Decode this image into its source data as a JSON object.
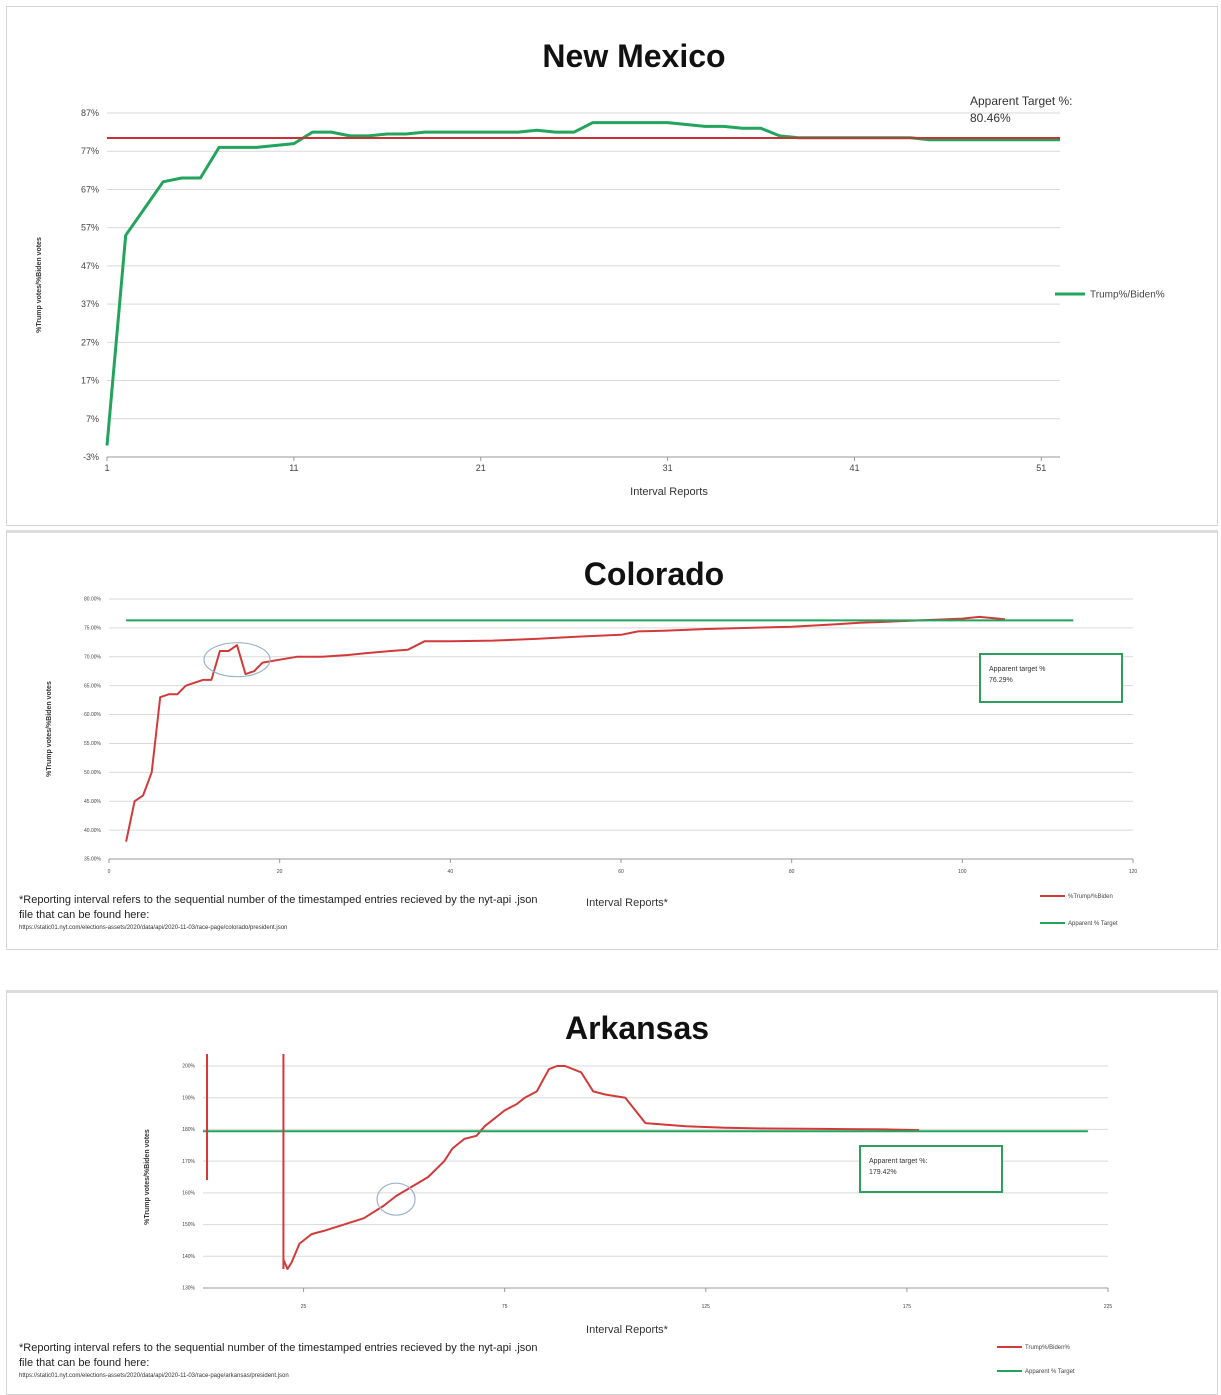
{
  "charts": [
    {
      "title": "New Mexico",
      "xlabel": "Interval Reports",
      "ylabel": "%Trump votes/%Biden votes",
      "target_label": "Apparent Target %:",
      "target_value": "80.46%",
      "legend": [
        "Trump%/Biden%"
      ]
    },
    {
      "title": "Colorado",
      "xlabel": "Interval Reports*",
      "ylabel": "%Trump votes/%Biden votes",
      "target_label": "Apparent target %",
      "target_value": "76.29%",
      "legend": [
        "%Trump/%Biden",
        "Apparent % Target"
      ],
      "note": "*Reporting interval refers to the sequential number of the timestamped entries recieved by the nyt-api .json file that can be found here:",
      "url": "https://static01.nyt.com/elections-assets/2020/data/api/2020-11-03/race-page/colorado/president.json"
    },
    {
      "title": "Arkansas",
      "xlabel": "Interval Reports*",
      "ylabel": "%Trump votes/%Biden votes",
      "target_label": "Apparent target %:",
      "target_value": "179.42%",
      "legend": [
        "Trump%/Biden%",
        "Apparent % Target"
      ],
      "note": "*Reporting interval refers to the sequential number of the timestamped entries recieved by the nyt-api .json file that can be found here:",
      "url": "https://static01.nyt.com/elections-assets/2020/data/api/2020-11-03/race-page/arkansas/president.json"
    }
  ],
  "chart_data": [
    {
      "type": "line",
      "title": "New Mexico",
      "xlabel": "Interval Reports",
      "ylabel": "%Trump votes/%Biden votes",
      "ylim": [
        -3,
        87
      ],
      "y_ticks": [
        "-3%",
        "7%",
        "17%",
        "27%",
        "37%",
        "47%",
        "57%",
        "67%",
        "77%",
        "87%"
      ],
      "y_tick_values": [
        -3,
        7,
        17,
        27,
        37,
        47,
        57,
        67,
        77,
        87
      ],
      "x_ticks": [
        "1",
        "11",
        "21",
        "31",
        "41",
        "51"
      ],
      "x_tick_values": [
        1,
        11,
        21,
        31,
        41,
        51
      ],
      "xlim": [
        1,
        52
      ],
      "target": 80.46,
      "series": [
        {
          "name": "Trump%/Biden%",
          "color": "#22a45d",
          "x": [
            1,
            2,
            3,
            4,
            5,
            6,
            7,
            8,
            9,
            10,
            11,
            12,
            13,
            14,
            15,
            16,
            17,
            18,
            19,
            20,
            21,
            22,
            23,
            24,
            25,
            26,
            27,
            28,
            29,
            30,
            31,
            32,
            33,
            34,
            35,
            36,
            37,
            38,
            39,
            40,
            41,
            42,
            43,
            44,
            45,
            46,
            47,
            48,
            49,
            50,
            51,
            52
          ],
          "y": [
            0,
            55,
            62,
            69,
            70,
            70,
            78,
            78,
            78,
            78.5,
            79,
            82,
            82,
            81,
            81,
            81.5,
            81.5,
            82,
            82,
            82,
            82,
            82,
            82,
            82.5,
            82,
            82,
            84.5,
            84.5,
            84.5,
            84.5,
            84.5,
            84,
            83.5,
            83.5,
            83,
            83,
            81,
            80.5,
            80.5,
            80.5,
            80.5,
            80.5,
            80.5,
            80.5,
            80,
            80,
            80,
            80,
            80,
            80,
            80,
            80
          ]
        },
        {
          "name": "Apparent % Target",
          "color": "#c83232",
          "x": [
            1,
            52
          ],
          "y": [
            80.46,
            80.46
          ]
        }
      ],
      "legend_position": "right"
    },
    {
      "type": "line",
      "title": "Colorado",
      "xlabel": "Interval Reports*",
      "ylabel": "%Trump votes/%Biden votes",
      "ylim": [
        35,
        80
      ],
      "y_ticks": [
        "35.00%",
        "40.00%",
        "45.00%",
        "50.00%",
        "55.00%",
        "60.00%",
        "65.00%",
        "70.00%",
        "75.00%",
        "80.00%"
      ],
      "y_tick_values": [
        35,
        40,
        45,
        50,
        55,
        60,
        65,
        70,
        75,
        80
      ],
      "x_ticks": [
        "0",
        "20",
        "40",
        "60",
        "80",
        "100",
        "120"
      ],
      "x_tick_values": [
        0,
        20,
        40,
        60,
        80,
        100,
        120
      ],
      "xlim": [
        0,
        120
      ],
      "target": 76.29,
      "series": [
        {
          "name": "%Trump/%Biden",
          "color": "#d23a3a",
          "x": [
            2,
            3,
            4,
            5,
            6,
            7,
            8,
            9,
            10,
            11,
            12,
            13,
            14,
            15,
            16,
            17,
            18,
            20,
            22,
            25,
            28,
            30,
            33,
            35,
            37,
            40,
            45,
            50,
            55,
            60,
            62,
            65,
            70,
            75,
            80,
            85,
            88,
            90,
            95,
            100,
            102,
            105
          ],
          "y": [
            38,
            45,
            46,
            50,
            63,
            63.5,
            63.5,
            65,
            65.5,
            66,
            66,
            71,
            71,
            72,
            67,
            67.5,
            69,
            69.5,
            70,
            70,
            70.3,
            70.6,
            71,
            71.2,
            72.7,
            72.7,
            72.8,
            73.1,
            73.5,
            73.8,
            74.4,
            74.5,
            74.8,
            75,
            75.2,
            75.6,
            75.9,
            76,
            76.3,
            76.6,
            76.9,
            76.5
          ]
        },
        {
          "name": "Apparent % Target",
          "color": "#22a45d",
          "x": [
            2,
            113
          ],
          "y": [
            76.29,
            76.29
          ]
        }
      ],
      "legend_position": "bottom-right"
    },
    {
      "type": "line",
      "title": "Arkansas",
      "xlabel": "Interval Reports*",
      "ylabel": "%Trump votes/%Biden votes",
      "ylim": [
        130,
        200
      ],
      "y_ticks": [
        "130%",
        "140%",
        "150%",
        "160%",
        "170%",
        "180%",
        "190%",
        "200%"
      ],
      "y_tick_values": [
        130,
        140,
        150,
        160,
        170,
        180,
        190,
        200
      ],
      "x_ticks": [
        "25",
        "75",
        "125",
        "175",
        "225"
      ],
      "x_tick_values": [
        25,
        75,
        125,
        175,
        225
      ],
      "xlim": [
        0,
        225
      ],
      "target": 179.42,
      "series": [
        {
          "name": "Trump%/Biden%",
          "color": "#d23a3a",
          "x": [
            20,
            21,
            22,
            24,
            27,
            30,
            35,
            40,
            45,
            48,
            52,
            56,
            60,
            62,
            65,
            68,
            70,
            75,
            78,
            80,
            83,
            86,
            88,
            90,
            94,
            97,
            100,
            105,
            110,
            120,
            130,
            140,
            150,
            160,
            170,
            178
          ],
          "y": [
            139,
            136,
            138,
            144,
            147,
            148,
            150,
            152,
            156,
            159,
            162,
            165,
            170,
            174,
            177,
            178,
            181,
            186,
            188,
            190,
            192,
            199,
            200,
            200,
            198,
            192,
            191,
            190,
            182,
            181,
            180.5,
            180.3,
            180.2,
            180.1,
            180,
            179.8
          ]
        },
        {
          "name": "Apparent % Target",
          "color": "#22a45d",
          "x": [
            0,
            220
          ],
          "y": [
            179.42,
            179.42
          ]
        }
      ],
      "legend_position": "bottom-right"
    }
  ]
}
